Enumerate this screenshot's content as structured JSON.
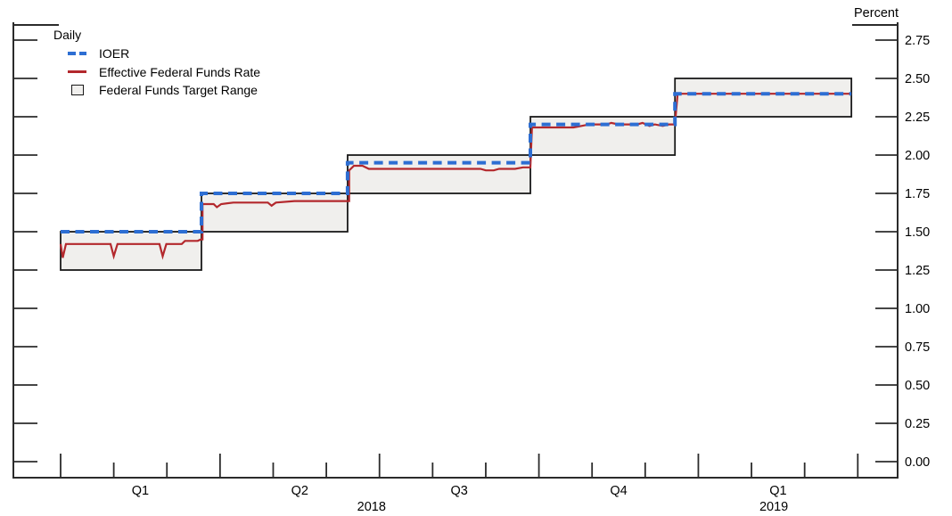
{
  "chart_data": {
    "type": "line",
    "title": "",
    "ylabel": "Percent",
    "frequency": "Daily",
    "y_axis": {
      "min": 0,
      "max": 2.75,
      "step": 0.25,
      "tick_labels": [
        "2.75",
        "2.50",
        "2.25",
        "2.00",
        "1.75",
        "1.50",
        "1.25",
        "1.00",
        "0.75",
        "0.50",
        "0.25",
        "0.00"
      ]
    },
    "x_axis": {
      "start_month": "2018-01",
      "n_month_ticks": 16,
      "quarter_tick_every": 3,
      "quarter_labels": [
        {
          "label": "Q1",
          "t": 1.5
        },
        {
          "label": "Q2",
          "t": 4.5
        },
        {
          "label": "Q3",
          "t": 7.5
        },
        {
          "label": "Q4",
          "t": 10.5
        },
        {
          "label": "Q1",
          "t": 13.5
        }
      ],
      "year_labels": [
        {
          "label": "2018",
          "t": 5.85
        },
        {
          "label": "2019",
          "t": 13.42
        }
      ]
    },
    "legend": {
      "title": "Daily",
      "items": [
        {
          "id": "ioer",
          "label": "IOER",
          "style": "dashed"
        },
        {
          "id": "effr",
          "label": "Effective Federal Funds Rate",
          "style": "solid"
        },
        {
          "id": "range",
          "label": "Federal Funds Target Range",
          "style": "box"
        }
      ]
    },
    "colors": {
      "ioer": "#2d6ed3",
      "effr": "#b3282d",
      "range_fill": "#f0efed",
      "range_border": "#1a1a1a",
      "axis": "#2b2b2b",
      "text": "#000000"
    },
    "series": {
      "target_range_boxes": [
        {
          "t0": 0.0,
          "t1": 2.65,
          "low": 1.25,
          "high": 1.5
        },
        {
          "t0": 2.65,
          "t1": 5.4,
          "low": 1.5,
          "high": 1.75
        },
        {
          "t0": 5.4,
          "t1": 8.84,
          "low": 1.75,
          "high": 2.0
        },
        {
          "t0": 8.84,
          "t1": 11.56,
          "low": 2.0,
          "high": 2.25
        },
        {
          "t0": 11.56,
          "t1": 14.88,
          "low": 2.25,
          "high": 2.5
        }
      ],
      "ioer_steps": [
        {
          "t0": 0.0,
          "t1": 2.65,
          "value": 1.5
        },
        {
          "t0": 2.65,
          "t1": 5.4,
          "value": 1.75
        },
        {
          "t0": 5.4,
          "t1": 8.84,
          "value": 1.95
        },
        {
          "t0": 8.84,
          "t1": 11.56,
          "value": 2.2
        },
        {
          "t0": 11.56,
          "t1": 14.88,
          "value": 2.4
        }
      ],
      "effr_points": [
        [
          0.0,
          1.42
        ],
        [
          0.04,
          1.33
        ],
        [
          0.1,
          1.42
        ],
        [
          0.94,
          1.42
        ],
        [
          1.0,
          1.34
        ],
        [
          1.07,
          1.42
        ],
        [
          1.86,
          1.42
        ],
        [
          1.92,
          1.34
        ],
        [
          1.99,
          1.42
        ],
        [
          2.28,
          1.42
        ],
        [
          2.34,
          1.44
        ],
        [
          2.58,
          1.44
        ],
        [
          2.64,
          1.45
        ],
        [
          2.67,
          1.45
        ],
        [
          2.67,
          1.68
        ],
        [
          2.88,
          1.68
        ],
        [
          2.94,
          1.66
        ],
        [
          3.02,
          1.68
        ],
        [
          3.25,
          1.69
        ],
        [
          3.9,
          1.69
        ],
        [
          3.97,
          1.67
        ],
        [
          4.05,
          1.69
        ],
        [
          4.4,
          1.7
        ],
        [
          5.43,
          1.7
        ],
        [
          5.43,
          1.9
        ],
        [
          5.52,
          1.93
        ],
        [
          5.68,
          1.93
        ],
        [
          5.8,
          1.91
        ],
        [
          7.9,
          1.91
        ],
        [
          8.0,
          1.9
        ],
        [
          8.15,
          1.9
        ],
        [
          8.25,
          1.91
        ],
        [
          8.55,
          1.91
        ],
        [
          8.7,
          1.92
        ],
        [
          8.84,
          1.92
        ],
        [
          8.87,
          2.18
        ],
        [
          9.65,
          2.18
        ],
        [
          9.8,
          2.19
        ],
        [
          9.95,
          2.2
        ],
        [
          10.28,
          2.2
        ],
        [
          10.36,
          2.21
        ],
        [
          10.5,
          2.2
        ],
        [
          10.85,
          2.2
        ],
        [
          10.95,
          2.21
        ],
        [
          11.08,
          2.19
        ],
        [
          11.18,
          2.2
        ],
        [
          11.33,
          2.19
        ],
        [
          11.45,
          2.2
        ],
        [
          11.56,
          2.2
        ],
        [
          11.61,
          2.4
        ],
        [
          14.88,
          2.4
        ]
      ]
    }
  }
}
